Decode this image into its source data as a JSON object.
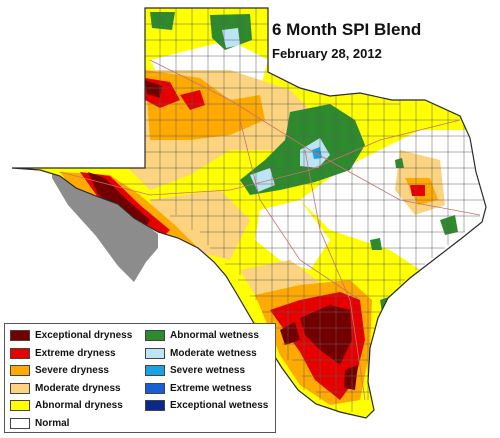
{
  "title": "6 Month SPI Blend",
  "date": "February 28, 2012",
  "colors": {
    "outside_region": "#8c8c8c",
    "county_line": "#5f5f5f",
    "state_outline": "#2a2a2a",
    "road_line": "#c97070"
  },
  "legend": {
    "left": [
      {
        "label": "Exceptional dryness",
        "color": "#730000"
      },
      {
        "label": "Extreme dryness",
        "color": "#e60000"
      },
      {
        "label": "Severe dryness",
        "color": "#ffaa00"
      },
      {
        "label": "Moderate dryness",
        "color": "#fcd37f"
      },
      {
        "label": "Abnormal dryness",
        "color": "#ffff00"
      },
      {
        "label": "Normal",
        "color": "#ffffff"
      }
    ],
    "right": [
      {
        "label": "Abnormal wetness",
        "color": "#2d8a2d"
      },
      {
        "label": "Moderate wetness",
        "color": "#bde4f5"
      },
      {
        "label": "Severe wetness",
        "color": "#1aa3e0"
      },
      {
        "label": "Extreme wetness",
        "color": "#1560d6"
      },
      {
        "label": "Exceptional wetness",
        "color": "#0a2a8a"
      }
    ]
  }
}
